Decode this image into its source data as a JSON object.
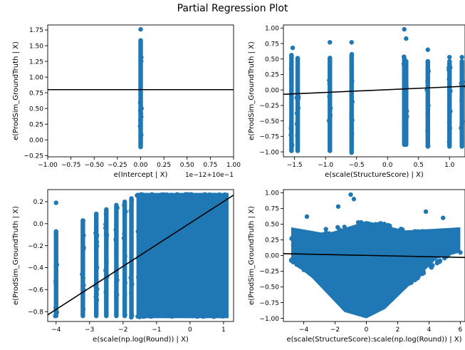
{
  "figure": {
    "suptitle": "Partial Regression Plot"
  },
  "colors": {
    "points": "#1f77b4",
    "fit_line": "#000000",
    "axes": "#000000",
    "background": "#ffffff"
  },
  "chart_data": [
    {
      "type": "scatter",
      "title": "",
      "xlabel": "e(Intercept | X)",
      "ylabel": "e(ProdSim_GroundTruth | X)",
      "x_offset_label": "1e−12+10e−1",
      "xlim": [
        -1.0,
        1.0
      ],
      "ylim": [
        -0.27,
        1.83
      ],
      "xticks": [
        -1.0,
        -0.75,
        -0.5,
        -0.25,
        0.0,
        0.25,
        0.5,
        0.75,
        1.0
      ],
      "xtick_labels": [
        "−1.00",
        "−0.75",
        "−0.50",
        "−0.25",
        "0.00",
        "0.25",
        "0.50",
        "0.75",
        "1.00"
      ],
      "yticks": [
        -0.25,
        0.0,
        0.25,
        0.5,
        0.75,
        1.0,
        1.25,
        1.5,
        1.75
      ],
      "ytick_labels": [
        "−0.25",
        "0.00",
        "0.25",
        "0.50",
        "0.75",
        "1.00",
        "1.25",
        "1.50",
        "1.75"
      ],
      "point_clusters": [
        {
          "x": 0.0,
          "y_min": -0.15,
          "y_max": 1.62
        }
      ],
      "outliers": [
        {
          "x": 0.0,
          "y": 1.76
        }
      ],
      "fit_line": {
        "x": [
          -1.0,
          1.0
        ],
        "y": [
          0.8,
          0.8
        ]
      }
    },
    {
      "type": "scatter",
      "title": "",
      "xlabel": "e(scale(StructureScore) | X)",
      "ylabel": "e(ProdSim_GroundTruth | X)",
      "xlim": [
        -1.68,
        1.25
      ],
      "ylim": [
        -1.08,
        1.05
      ],
      "xticks": [
        -1.5,
        -1.0,
        -0.5,
        0.0,
        0.5,
        1.0
      ],
      "xtick_labels": [
        "−1.5",
        "−1.0",
        "−0.5",
        "0.0",
        "0.5",
        "1.0"
      ],
      "yticks": [
        -1.0,
        -0.75,
        -0.5,
        -0.25,
        0.0,
        0.25,
        0.5,
        0.75,
        1.0
      ],
      "ytick_labels": [
        "−1.00",
        "−0.75",
        "−0.50",
        "−0.25",
        "0.00",
        "0.25",
        "0.50",
        "0.75",
        "1.00"
      ],
      "point_clusters": [
        {
          "x": -1.55,
          "y_min": -1.02,
          "y_max": 0.6
        },
        {
          "x": -1.45,
          "y_min": -1.02,
          "y_max": 0.55
        },
        {
          "x": -0.93,
          "y_min": -1.02,
          "y_max": 0.55
        },
        {
          "x": -0.58,
          "y_min": -1.02,
          "y_max": 0.6
        },
        {
          "x": 0.27,
          "y_min": -0.92,
          "y_max": 0.55
        },
        {
          "x": 0.3,
          "y_min": -0.92,
          "y_max": 0.5
        },
        {
          "x": 0.65,
          "y_min": -0.95,
          "y_max": 0.5
        },
        {
          "x": 1.0,
          "y_min": -0.95,
          "y_max": 0.5
        },
        {
          "x": 1.2,
          "y_min": -0.95,
          "y_max": 0.5
        }
      ],
      "outliers": [
        {
          "x": -1.53,
          "y": 0.68
        },
        {
          "x": -0.93,
          "y": 0.77
        },
        {
          "x": -0.58,
          "y": 0.77
        },
        {
          "x": 0.27,
          "y": 0.98
        },
        {
          "x": 0.3,
          "y": 0.83
        },
        {
          "x": 0.65,
          "y": 0.65
        },
        {
          "x": 1.0,
          "y": 0.53
        },
        {
          "x": 1.2,
          "y": 0.53
        }
      ],
      "fit_line": {
        "x": [
          -1.68,
          1.25
        ],
        "y": [
          -0.07,
          0.06
        ]
      }
    },
    {
      "type": "scatter",
      "title": "",
      "xlabel": "e(scale(np.log(Round)) | X)",
      "ylabel": "e(ProdSim_GroundTruth | X)",
      "xlim": [
        -4.25,
        1.3
      ],
      "ylim": [
        -0.89,
        0.31
      ],
      "xticks": [
        -4,
        -3,
        -2,
        -1,
        0,
        1
      ],
      "xtick_labels": [
        "−4",
        "−3",
        "−2",
        "−1",
        "0",
        "1"
      ],
      "yticks": [
        -0.8,
        -0.6,
        -0.4,
        -0.2,
        0.0,
        0.2
      ],
      "ytick_labels": [
        "−0.8",
        "−0.6",
        "−0.4",
        "−0.2",
        "0.0",
        "0.2"
      ],
      "point_clusters": [
        {
          "x": -4.0,
          "y_min": -0.86,
          "y_max": -0.05
        },
        {
          "x": -3.2,
          "y_min": -0.86,
          "y_max": 0.05
        },
        {
          "x": -2.8,
          "y_min": -0.86,
          "y_max": 0.11
        },
        {
          "x": -2.5,
          "y_min": -0.86,
          "y_max": 0.15
        },
        {
          "x": -2.2,
          "y_min": -0.86,
          "y_max": 0.19
        },
        {
          "x": -1.95,
          "y_min": -0.86,
          "y_max": 0.22
        },
        {
          "x": -1.75,
          "y_min": -0.86,
          "y_max": 0.25
        }
      ],
      "dense_region": {
        "x_min": -1.6,
        "x_max": 1.15,
        "y_min": -0.86,
        "y_max": 0.28
      },
      "outliers": [
        {
          "x": -4.0,
          "y": 0.19
        }
      ],
      "fit_line": {
        "x": [
          -4.25,
          1.3
        ],
        "y": [
          -0.83,
          0.26
        ]
      }
    },
    {
      "type": "scatter",
      "title": "",
      "xlabel": "e(scale(StructureScore):scale(np.log(Round)) | X)",
      "ylabel": "e(ProdSim_GroundTruth | X)",
      "xlim": [
        -5.3,
        6.3
      ],
      "ylim": [
        -1.05,
        1.05
      ],
      "xticks": [
        -4,
        -2,
        0,
        2,
        4,
        6
      ],
      "xtick_labels": [
        "−4",
        "−2",
        "0",
        "2",
        "4",
        "6"
      ],
      "yticks": [
        -1.0,
        -0.75,
        -0.5,
        -0.25,
        0.0,
        0.25,
        0.5,
        0.75,
        1.0
      ],
      "ytick_labels": [
        "−1.00",
        "−0.75",
        "−0.50",
        "−0.25",
        "0.00",
        "0.25",
        "0.50",
        "0.75",
        "1.00"
      ],
      "v_shape": {
        "apex": {
          "x": 0.0,
          "y": -1.0
        },
        "top_left": {
          "x": -4.8,
          "y": 0.45
        },
        "top_right": {
          "x": 6.0,
          "y": 0.45
        },
        "top_center_y": 0.55
      },
      "outliers": [
        {
          "x": -1.0,
          "y": 0.97
        },
        {
          "x": -0.8,
          "y": 0.9
        },
        {
          "x": -1.8,
          "y": 0.78
        },
        {
          "x": -3.8,
          "y": 0.62
        },
        {
          "x": 3.8,
          "y": 0.7
        },
        {
          "x": 4.9,
          "y": 0.6
        },
        {
          "x": -4.8,
          "y": -0.08
        },
        {
          "x": 6.0,
          "y": 0.05
        }
      ],
      "fit_line": {
        "x": [
          -5.3,
          6.3
        ],
        "y": [
          0.03,
          -0.03
        ]
      }
    }
  ]
}
